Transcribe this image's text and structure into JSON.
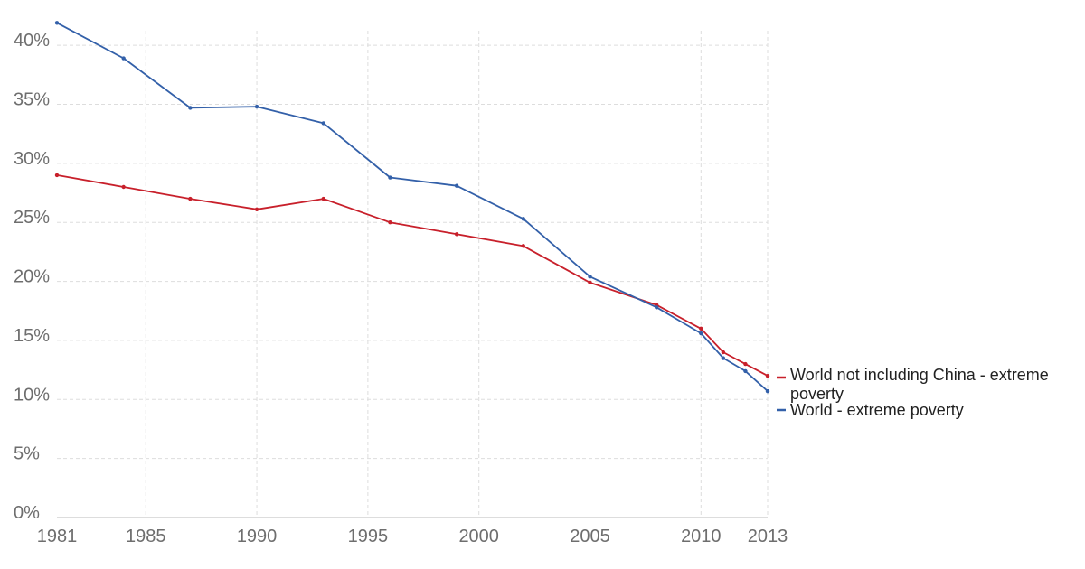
{
  "chart_data": {
    "type": "line",
    "title": "",
    "xlabel": "",
    "ylabel": "",
    "xlim": [
      1981,
      2013
    ],
    "ylim": [
      0,
      42
    ],
    "x_ticks": [
      1981,
      1985,
      1990,
      1995,
      2000,
      2005,
      2010,
      2013
    ],
    "x_tick_labels": [
      "1981",
      "1985",
      "1990",
      "1995",
      "2000",
      "2005",
      "2010",
      "2013"
    ],
    "y_ticks": [
      0,
      5,
      10,
      15,
      20,
      25,
      30,
      35,
      40
    ],
    "y_tick_labels": [
      "0%",
      "5%",
      "10%",
      "15%",
      "20%",
      "25%",
      "30%",
      "35%",
      "40%"
    ],
    "grid": true,
    "legend": "right",
    "series": [
      {
        "name": "World not including China - extreme poverty",
        "name_lines": [
          "World not including China - extreme",
          "poverty"
        ],
        "color": "#c8202b",
        "x": [
          1981,
          1984,
          1987,
          1990,
          1993,
          1996,
          1999,
          2002,
          2005,
          2008,
          2010,
          2011,
          2012,
          2013
        ],
        "values": [
          29.0,
          28.0,
          27.0,
          26.1,
          27.0,
          25.0,
          24.0,
          23.0,
          19.9,
          18.0,
          16.0,
          14.0,
          13.0,
          12.0
        ]
      },
      {
        "name": "World - extreme poverty",
        "name_lines": [
          "World - extreme poverty"
        ],
        "color": "#3360a9",
        "x": [
          1981,
          1984,
          1987,
          1990,
          1993,
          1996,
          1999,
          2002,
          2005,
          2008,
          2010,
          2011,
          2012,
          2013
        ],
        "values": [
          41.9,
          38.9,
          34.7,
          34.8,
          33.4,
          28.8,
          28.1,
          25.3,
          20.4,
          17.8,
          15.6,
          13.5,
          12.4,
          10.7
        ]
      }
    ]
  }
}
